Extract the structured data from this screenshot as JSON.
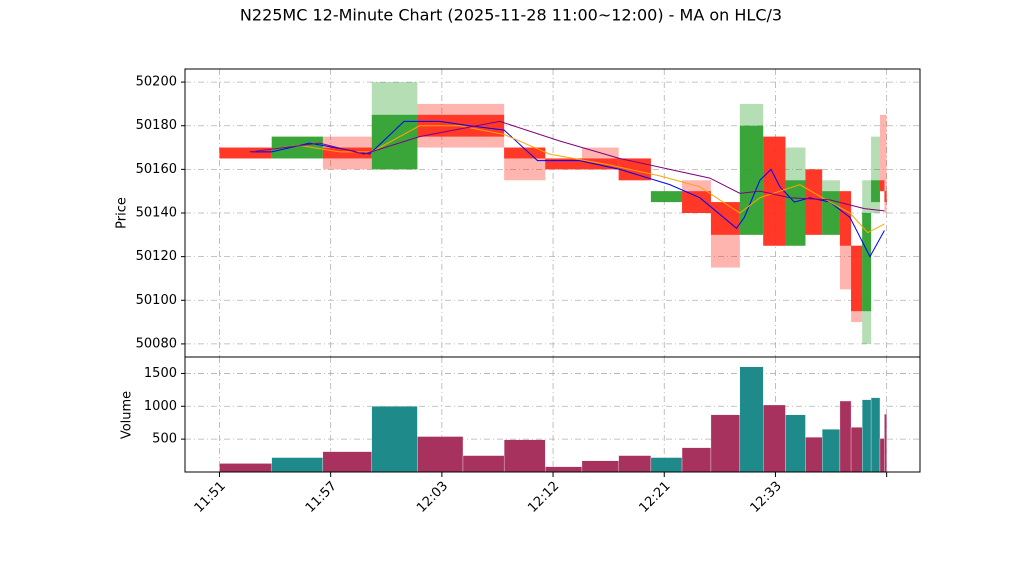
{
  "chart_data": {
    "type": "candlestick",
    "title": "N225MC 12-Minute Chart (2025-11-28 11:00~12:00) - MA on HLC/3",
    "y_label": "Price",
    "volume_label": "Volume",
    "x0": [
      0,
      0.47,
      0.93,
      1.37,
      1.78,
      2.19,
      2.56,
      2.93,
      3.26,
      3.59,
      3.88,
      4.16,
      4.42,
      4.68,
      4.89,
      5.09,
      5.27,
      5.42,
      5.58,
      5.68,
      5.78,
      5.86,
      5.94,
      5.98
    ],
    "x1": [
      0.47,
      0.93,
      1.37,
      1.78,
      2.19,
      2.56,
      2.93,
      3.26,
      3.59,
      3.88,
      4.16,
      4.42,
      4.68,
      4.89,
      5.09,
      5.27,
      5.42,
      5.58,
      5.68,
      5.78,
      5.86,
      5.94,
      5.98,
      6.0
    ],
    "open": [
      50170,
      50165,
      50170,
      50160,
      50185,
      50185,
      50170,
      50165,
      50165,
      50165,
      50145,
      50150,
      50145,
      50130,
      50175,
      50125,
      50160,
      50130,
      50150,
      50125,
      50095,
      50145,
      50155,
      50150
    ],
    "high": [
      50170,
      50175,
      50175,
      50200,
      50190,
      50190,
      50170,
      50165,
      50170,
      50165,
      50150,
      50155,
      50145,
      50190,
      50175,
      50170,
      50160,
      50155,
      50150,
      50125,
      50155,
      50175,
      50185,
      50185
    ],
    "low": [
      50165,
      50165,
      50160,
      50160,
      50170,
      50170,
      50155,
      50160,
      50160,
      50155,
      50145,
      50140,
      50115,
      50130,
      50125,
      50125,
      50130,
      50130,
      50105,
      50090,
      50080,
      50140,
      50150,
      50140
    ],
    "close": [
      50165,
      50175,
      50165,
      50185,
      50175,
      50175,
      50165,
      50160,
      50160,
      50155,
      50150,
      50140,
      50130,
      50180,
      50125,
      50155,
      50130,
      50150,
      50125,
      50095,
      50140,
      50155,
      50150,
      50145
    ],
    "volume": [
      130,
      220,
      310,
      1000,
      540,
      250,
      490,
      80,
      170,
      250,
      220,
      370,
      870,
      1600,
      1020,
      870,
      530,
      650,
      1080,
      680,
      1100,
      1130,
      510,
      880
    ],
    "up_color": "#2ca02c",
    "down_color": "#ff2a1a",
    "volume_up_color": "#1f8a8a",
    "volume_down_color": "#a8325e",
    "lines": [
      {
        "color": "#0000ff",
        "x": [
          0.27,
          0.47,
          0.81,
          1.03,
          1.35,
          1.66,
          1.98,
          2.25,
          2.56,
          2.86,
          3.24,
          3.6,
          4.05,
          4.32,
          4.65,
          4.72,
          4.86,
          4.96,
          5.04,
          5.17,
          5.31,
          5.49,
          5.67,
          5.85,
          5.98
        ],
        "values": [
          50168,
          50168,
          50172,
          50170,
          50167,
          50182,
          50182,
          50180,
          50178,
          50164,
          50164,
          50160,
          50153,
          50147,
          50133,
          50138,
          50155,
          50160,
          50152,
          50145,
          50147,
          50145,
          50138,
          50120,
          50132
        ]
      },
      {
        "color": "#ffa500",
        "x": [
          0.27,
          0.72,
          1.08,
          1.37,
          1.8,
          2.16,
          2.56,
          2.97,
          3.51,
          3.96,
          4.32,
          4.68,
          4.86,
          5.22,
          5.49,
          5.67,
          5.83,
          5.98
        ],
        "values": [
          50168,
          50171,
          50168,
          50168,
          50180,
          50180,
          50176,
          50167,
          50162,
          50157,
          50152,
          50140,
          50147,
          50153,
          50145,
          50140,
          50131,
          50135
        ]
      },
      {
        "color": "#800080",
        "x": [
          0.27,
          0.9,
          1.3,
          1.8,
          2.52,
          3.06,
          3.6,
          4.05,
          4.41,
          4.68,
          4.86,
          5.13,
          5.49,
          5.8,
          5.98
        ],
        "values": [
          50168,
          50172,
          50167,
          50175,
          50182,
          50173,
          50165,
          50160,
          50156,
          50149,
          50150,
          50147,
          50146,
          50142,
          50141
        ]
      }
    ],
    "xlim": [
      -0.31,
      6.3
    ],
    "xticks": [
      {
        "value": 0,
        "label": "11:51"
      },
      {
        "value": 1,
        "label": "11:57"
      },
      {
        "value": 2,
        "label": "12:03"
      },
      {
        "value": 3,
        "label": "12:12"
      },
      {
        "value": 4,
        "label": "12:21"
      },
      {
        "value": 5,
        "label": "12:33"
      },
      {
        "value": 6,
        "label": null
      }
    ],
    "ylim": [
      50074,
      50206
    ],
    "yticks": [
      50080,
      50100,
      50120,
      50140,
      50160,
      50180,
      50200
    ],
    "volume_ylim": [
      0,
      1750
    ],
    "volume_yticks": [
      500,
      1000,
      1500
    ],
    "grid": true
  }
}
